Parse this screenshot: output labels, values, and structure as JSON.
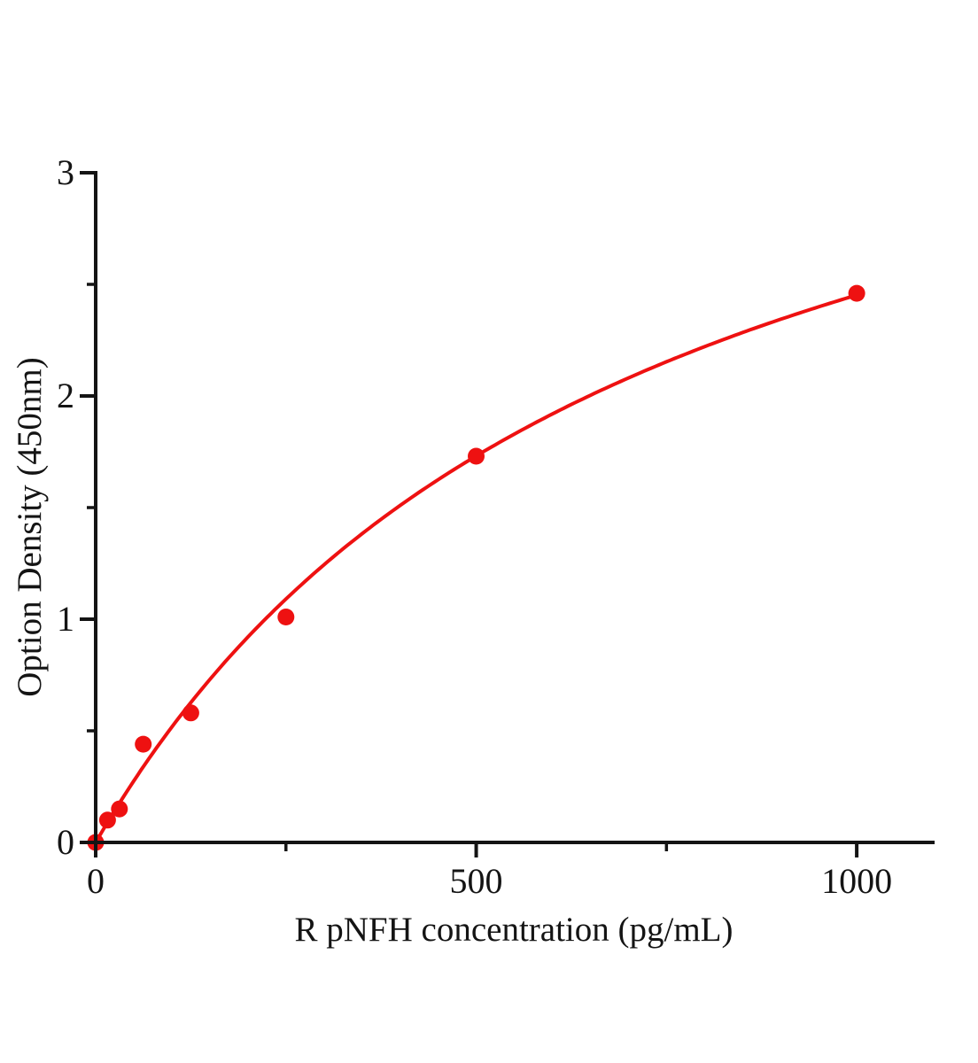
{
  "figure": {
    "background": "#ffffff"
  },
  "chart_data": {
    "type": "scatter",
    "title": "",
    "xlabel": "R pNFH concentration (pg/mL)",
    "ylabel": "Option Density (450nm)",
    "x": [
      0,
      15.6,
      31.2,
      62.5,
      125,
      250,
      500,
      1000
    ],
    "y": [
      0.0,
      0.1,
      0.15,
      0.44,
      0.58,
      1.01,
      1.73,
      2.46
    ],
    "xlim": [
      0,
      1100
    ],
    "ylim": [
      0,
      3
    ],
    "x_major_ticks": [
      0,
      500,
      1000
    ],
    "x_tick_labels": [
      "0",
      "500",
      "1000"
    ],
    "x_minor_ticks": [
      250,
      750
    ],
    "y_major_ticks": [
      0,
      1,
      2,
      3
    ],
    "y_tick_labels": [
      "0",
      "1",
      "2",
      "3"
    ],
    "y_minor_ticks": [
      0.5,
      1.5,
      2.5
    ],
    "fit_curve": {
      "model": "y = a*x / (b + x)",
      "a": 4.2,
      "b": 713,
      "x_range": [
        0,
        1000
      ]
    },
    "grid": false,
    "legend": "none",
    "colors": {
      "curve": "#ee1111",
      "marker": "#ee1111",
      "axis": "#141414",
      "background": "#ffffff"
    }
  }
}
